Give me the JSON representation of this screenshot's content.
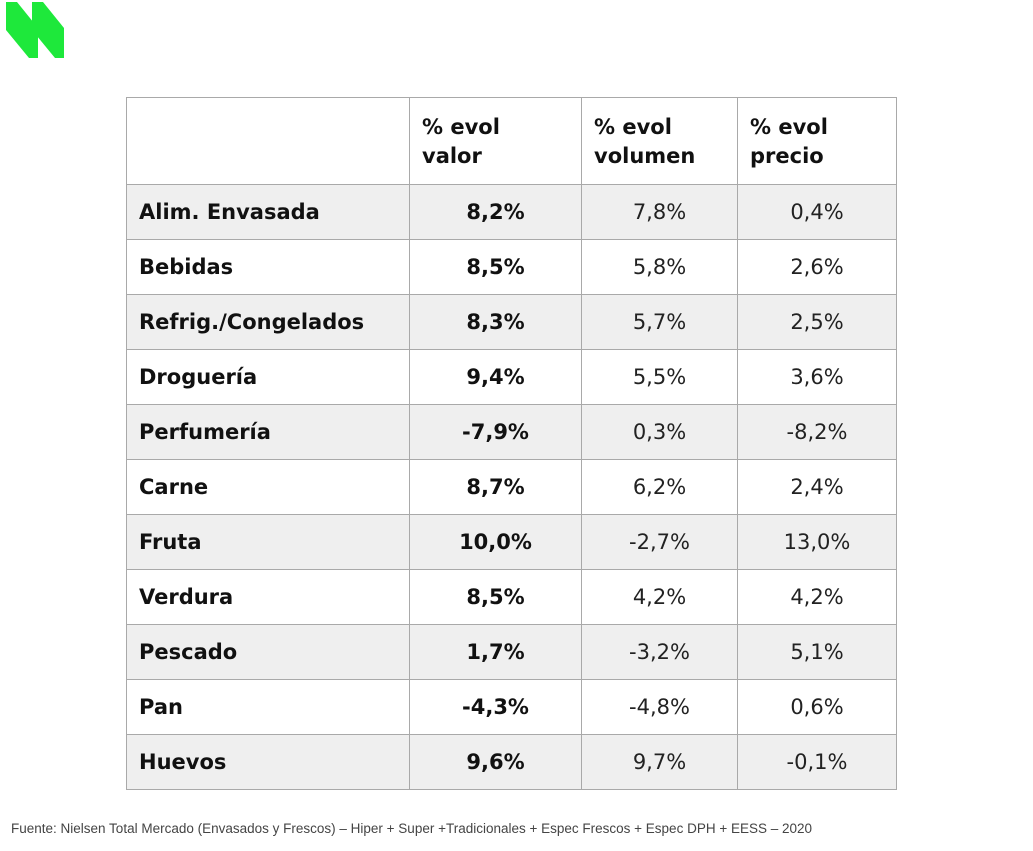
{
  "brand": {
    "accent_color": "#1ee83b",
    "logo_icon": "double-slash-logo-icon"
  },
  "table": {
    "headers": [
      "",
      "% evol valor",
      "% evol volumen",
      "% evol precio"
    ],
    "header_lines": [
      [],
      [
        "% evol",
        "valor"
      ],
      [
        "% evol",
        "volumen"
      ],
      [
        "% evol",
        "precio"
      ]
    ],
    "rows": [
      {
        "category": "Alim. Envasada",
        "valor": "8,2%",
        "volumen": "7,8%",
        "precio": "0,4%"
      },
      {
        "category": "Bebidas",
        "valor": "8,5%",
        "volumen": "5,8%",
        "precio": "2,6%"
      },
      {
        "category": "Refrig./Congelados",
        "valor": "8,3%",
        "volumen": "5,7%",
        "precio": "2,5%"
      },
      {
        "category": "Droguería",
        "valor": "9,4%",
        "volumen": "5,5%",
        "precio": "3,6%"
      },
      {
        "category": "Perfumería",
        "valor": "-7,9%",
        "volumen": "0,3%",
        "precio": "-8,2%"
      },
      {
        "category": "Carne",
        "valor": "8,7%",
        "volumen": "6,2%",
        "precio": "2,4%"
      },
      {
        "category": "Fruta",
        "valor": "10,0%",
        "volumen": "-2,7%",
        "precio": "13,0%"
      },
      {
        "category": "Verdura",
        "valor": "8,5%",
        "volumen": "4,2%",
        "precio": "4,2%"
      },
      {
        "category": "Pescado",
        "valor": "1,7%",
        "volumen": "-3,2%",
        "precio": "5,1%"
      },
      {
        "category": "Pan",
        "valor": "-4,3%",
        "volumen": "-4,8%",
        "precio": "0,6%"
      },
      {
        "category": "Huevos",
        "valor": "9,6%",
        "volumen": "9,7%",
        "precio": "-0,1%"
      }
    ],
    "colors": {
      "shaded_row": "#efefef",
      "border": "#a9a9a9"
    }
  },
  "source": {
    "text": "Fuente: Nielsen Total Mercado (Envasados y Frescos) – Hiper + Super +Tradicionales +  Espec Frescos + Espec DPH + EESS – 2020"
  }
}
